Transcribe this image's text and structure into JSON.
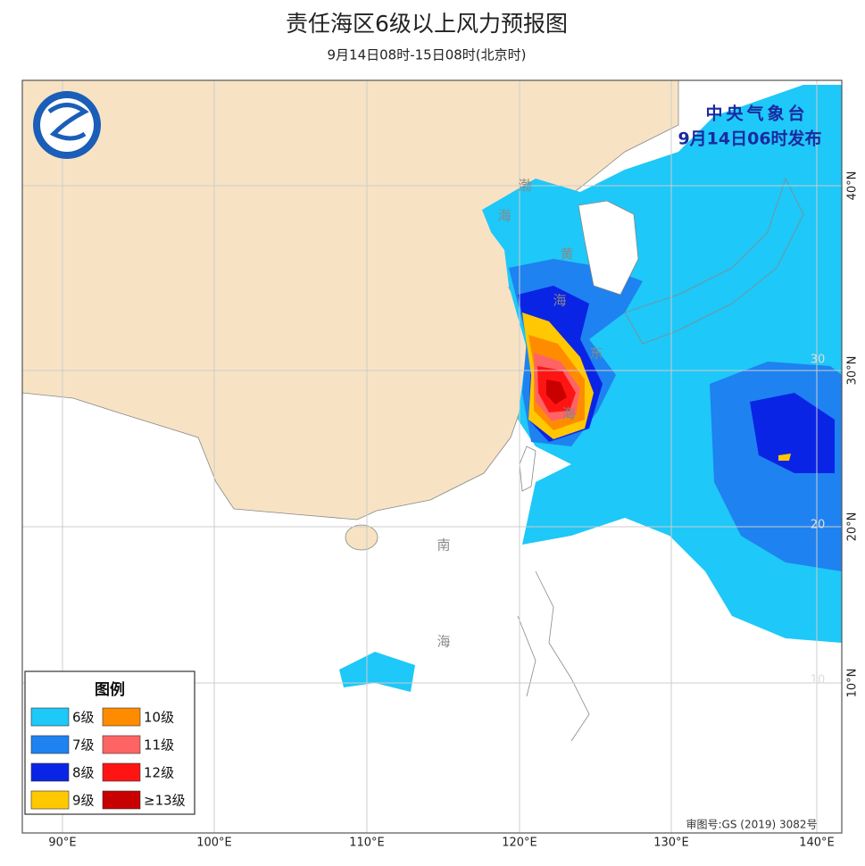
{
  "header": {
    "title": "责任海区6级以上风力预报图",
    "subtitle": "9月14日08时-15日08时(北京时)"
  },
  "issuer": {
    "agency": "中央气象台",
    "issued": "9月14日06时发布"
  },
  "legend": {
    "title": "图例",
    "items": [
      {
        "label": "6级",
        "color": "#1ec8f8"
      },
      {
        "label": "7级",
        "color": "#1e82f0"
      },
      {
        "label": "8级",
        "color": "#0a24e6"
      },
      {
        "label": "9级",
        "color": "#ffc800"
      },
      {
        "label": "10级",
        "color": "#ff8c00"
      },
      {
        "label": "11级",
        "color": "#ff6464"
      },
      {
        "label": "12级",
        "color": "#ff1414"
      },
      {
        "label": "≥13级",
        "color": "#c80000"
      }
    ]
  },
  "axes": {
    "longitude": [
      "90°E",
      "100°E",
      "110°E",
      "120°E",
      "130°E",
      "140°E"
    ],
    "latitude": [
      "40°N",
      "30°N",
      "20°N",
      "10°N"
    ],
    "inner_latitude": [
      "30",
      "20",
      "10"
    ]
  },
  "map_labels": [
    "渤",
    "海",
    "黄",
    "海",
    "东",
    "海",
    "南",
    "海"
  ],
  "footer": {
    "approval": "审图号:GS (2019) 3082号"
  }
}
